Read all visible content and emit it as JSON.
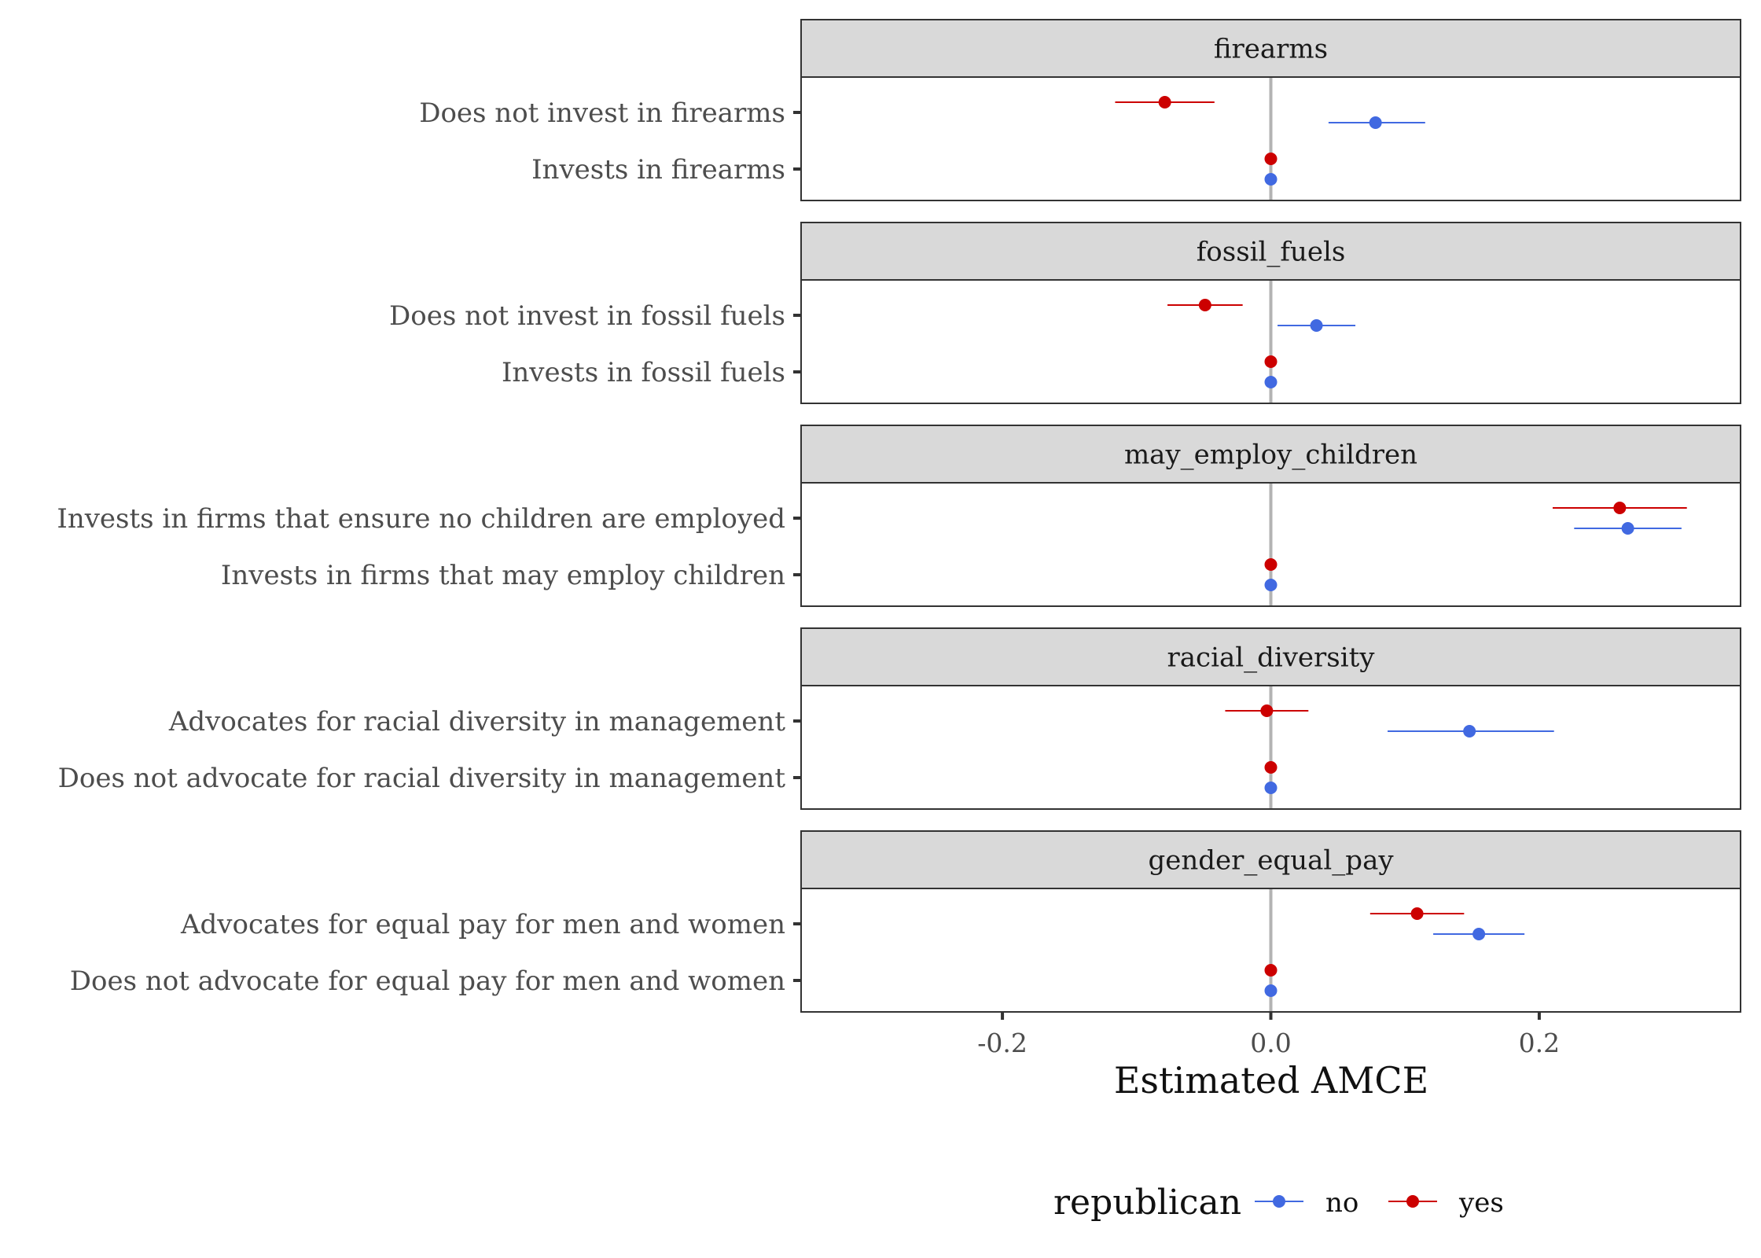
{
  "chart_data": {
    "type": "scatter",
    "subtype": "faceted coefficient plot with horizontal error bars",
    "xlabel": "Estimated AMCE",
    "xlim": [
      -0.35,
      0.35
    ],
    "x_ticks": [
      "-0.2",
      "0.0",
      "0.2"
    ],
    "x_tick_values": [
      -0.2,
      0.0,
      0.2
    ],
    "reference_line_x": 0,
    "grid": false,
    "legend": {
      "title": "republican",
      "position": "bottom",
      "entries": [
        {
          "label": "no",
          "color": "#4169E1"
        },
        {
          "label": "yes",
          "color": "#CC0000"
        }
      ]
    },
    "facets": [
      {
        "strip": "firearms",
        "levels": [
          {
            "label": "Does not invest in firearms",
            "points": [
              {
                "group": "yes",
                "estimate": -0.079,
                "lower": -0.116,
                "upper": -0.042
              },
              {
                "group": "no",
                "estimate": 0.078,
                "lower": 0.043,
                "upper": 0.115
              }
            ]
          },
          {
            "label": "Invests in firearms",
            "points": [
              {
                "group": "yes",
                "estimate": 0.0,
                "lower": 0.0,
                "upper": 0.0
              },
              {
                "group": "no",
                "estimate": 0.0,
                "lower": 0.0,
                "upper": 0.0
              }
            ]
          }
        ]
      },
      {
        "strip": "fossil_fuels",
        "levels": [
          {
            "label": "Does not invest in fossil fuels",
            "points": [
              {
                "group": "yes",
                "estimate": -0.049,
                "lower": -0.077,
                "upper": -0.021
              },
              {
                "group": "no",
                "estimate": 0.034,
                "lower": 0.005,
                "upper": 0.063
              }
            ]
          },
          {
            "label": "Invests in fossil fuels",
            "points": [
              {
                "group": "yes",
                "estimate": 0.0,
                "lower": 0.0,
                "upper": 0.0
              },
              {
                "group": "no",
                "estimate": 0.0,
                "lower": 0.0,
                "upper": 0.0
              }
            ]
          }
        ]
      },
      {
        "strip": "may_employ_children",
        "levels": [
          {
            "label": "Invests in firms that ensure no children are employed",
            "points": [
              {
                "group": "yes",
                "estimate": 0.26,
                "lower": 0.21,
                "upper": 0.31
              },
              {
                "group": "no",
                "estimate": 0.266,
                "lower": 0.226,
                "upper": 0.306
              }
            ]
          },
          {
            "label": "Invests in firms that may employ children",
            "points": [
              {
                "group": "yes",
                "estimate": 0.0,
                "lower": 0.0,
                "upper": 0.0
              },
              {
                "group": "no",
                "estimate": 0.0,
                "lower": 0.0,
                "upper": 0.0
              }
            ]
          }
        ]
      },
      {
        "strip": "racial_diversity",
        "levels": [
          {
            "label": "Advocates for racial diversity in management",
            "points": [
              {
                "group": "yes",
                "estimate": -0.003,
                "lower": -0.034,
                "upper": 0.028
              },
              {
                "group": "no",
                "estimate": 0.148,
                "lower": 0.087,
                "upper": 0.211
              }
            ]
          },
          {
            "label": "Does not advocate for racial diversity in management",
            "points": [
              {
                "group": "yes",
                "estimate": 0.0,
                "lower": 0.0,
                "upper": 0.0
              },
              {
                "group": "no",
                "estimate": 0.0,
                "lower": 0.0,
                "upper": 0.0
              }
            ]
          }
        ]
      },
      {
        "strip": "gender_equal_pay",
        "levels": [
          {
            "label": "Advocates for equal pay for men and women",
            "points": [
              {
                "group": "yes",
                "estimate": 0.109,
                "lower": 0.074,
                "upper": 0.144
              },
              {
                "group": "no",
                "estimate": 0.155,
                "lower": 0.121,
                "upper": 0.189
              }
            ]
          },
          {
            "label": "Does not advocate for equal pay for men and women",
            "points": [
              {
                "group": "yes",
                "estimate": 0.0,
                "lower": 0.0,
                "upper": 0.0
              },
              {
                "group": "no",
                "estimate": 0.0,
                "lower": 0.0,
                "upper": 0.0
              }
            ]
          }
        ]
      }
    ]
  }
}
